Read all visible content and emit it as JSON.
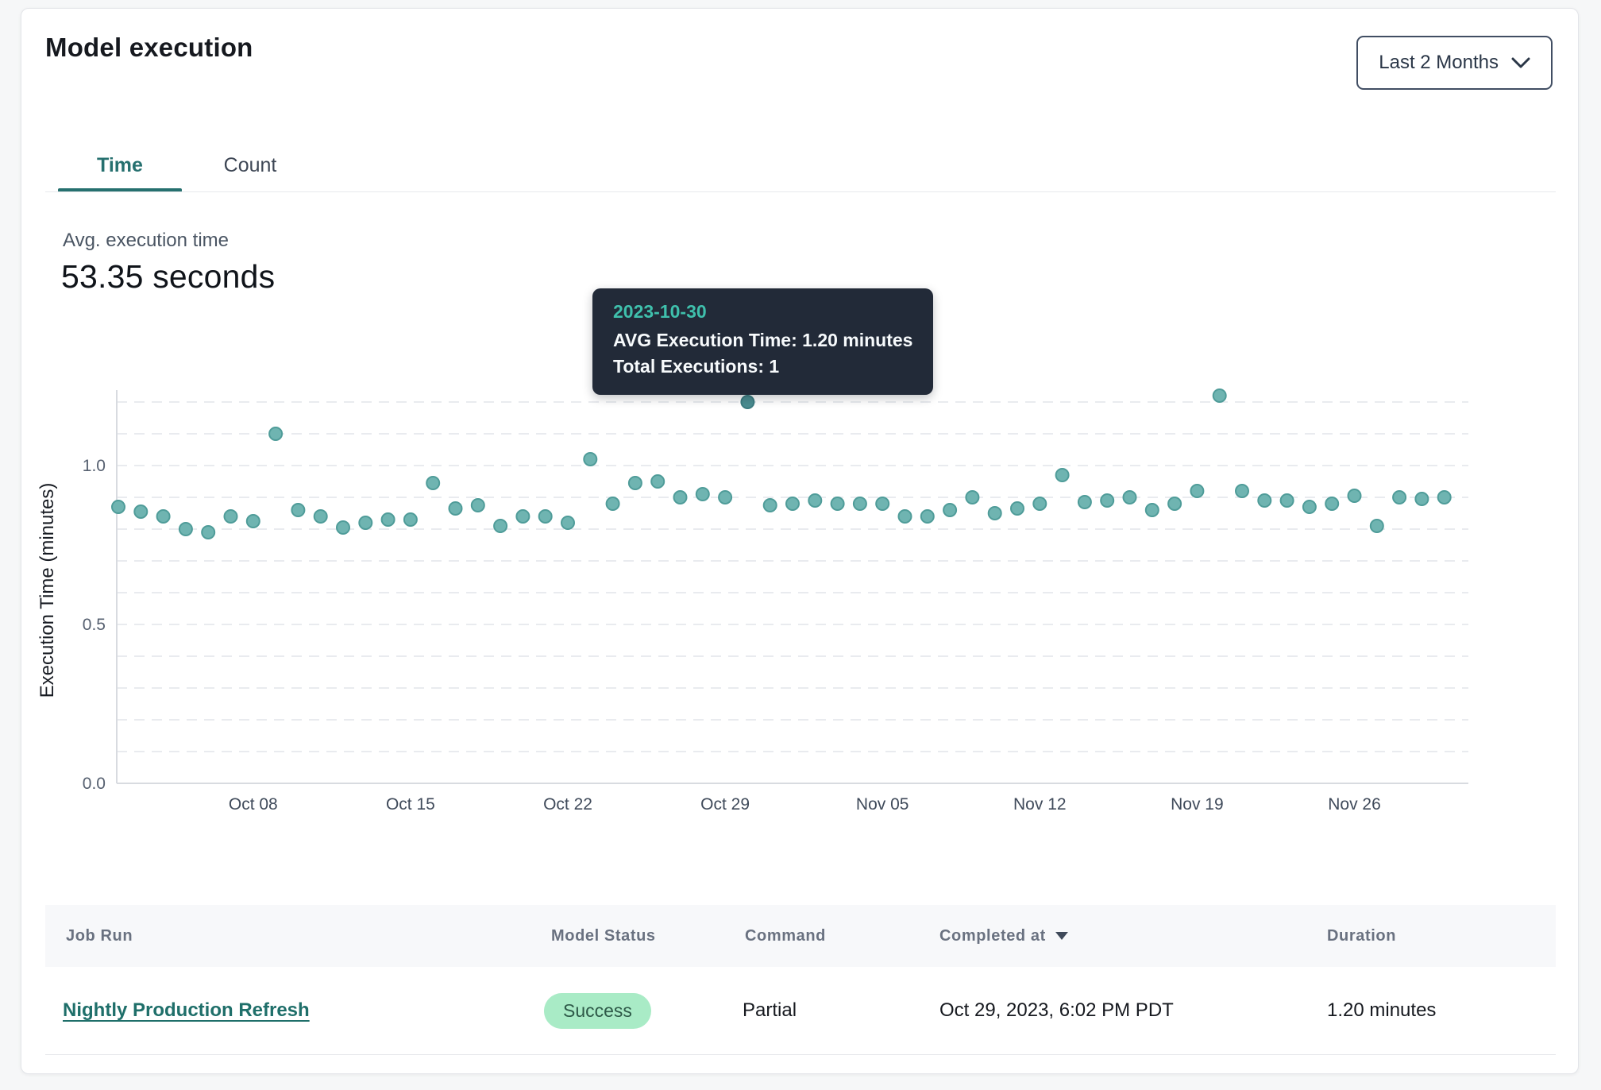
{
  "header": {
    "title": "Model execution",
    "range_selector": {
      "label": "Last 2 Months"
    }
  },
  "tabs": [
    {
      "label": "Time",
      "active": true
    },
    {
      "label": "Count",
      "active": false
    }
  ],
  "metric": {
    "label": "Avg. execution time",
    "value": "53.35 seconds"
  },
  "tooltip": {
    "date": "2023-10-30",
    "avg_line": "AVG Execution Time: 1.20 minutes",
    "total_line": "Total Executions: 1"
  },
  "chart_data": {
    "type": "scatter",
    "title": "",
    "xlabel": "",
    "ylabel": "Execution Time (minutes)",
    "ylim": [
      0,
      1.25
    ],
    "grid_step": 0.1,
    "grid": "horizontal dashed every 0.1",
    "legend": "none",
    "y_ticks": [
      {
        "label": "0.0",
        "value": 0.0
      },
      {
        "label": "0.5",
        "value": 0.5
      },
      {
        "label": "1.0",
        "value": 1.0
      }
    ],
    "x_ticks": [
      {
        "label": "Oct 08",
        "date": "2023-10-08"
      },
      {
        "label": "Oct 15",
        "date": "2023-10-15"
      },
      {
        "label": "Oct 22",
        "date": "2023-10-22"
      },
      {
        "label": "Oct 29",
        "date": "2023-10-29"
      },
      {
        "label": "Nov 05",
        "date": "2023-11-05"
      },
      {
        "label": "Nov 12",
        "date": "2023-11-12"
      },
      {
        "label": "Nov 19",
        "date": "2023-11-19"
      },
      {
        "label": "Nov 26",
        "date": "2023-11-26"
      }
    ],
    "highlight": {
      "date": "2023-10-30",
      "avg_execution_minutes": 1.2,
      "total_executions": 1
    },
    "series": [
      {
        "name": "AVG Execution Time (minutes)",
        "points": [
          {
            "date": "2023-10-02",
            "value": 0.87
          },
          {
            "date": "2023-10-03",
            "value": 0.855
          },
          {
            "date": "2023-10-04",
            "value": 0.84
          },
          {
            "date": "2023-10-05",
            "value": 0.8
          },
          {
            "date": "2023-10-06",
            "value": 0.79
          },
          {
            "date": "2023-10-07",
            "value": 0.84
          },
          {
            "date": "2023-10-08",
            "value": 0.825
          },
          {
            "date": "2023-10-09",
            "value": 1.1
          },
          {
            "date": "2023-10-10",
            "value": 0.86
          },
          {
            "date": "2023-10-11",
            "value": 0.84
          },
          {
            "date": "2023-10-12",
            "value": 0.805
          },
          {
            "date": "2023-10-13",
            "value": 0.82
          },
          {
            "date": "2023-10-14",
            "value": 0.83
          },
          {
            "date": "2023-10-15",
            "value": 0.83
          },
          {
            "date": "2023-10-16",
            "value": 0.945
          },
          {
            "date": "2023-10-17",
            "value": 0.865
          },
          {
            "date": "2023-10-18",
            "value": 0.875
          },
          {
            "date": "2023-10-19",
            "value": 0.81
          },
          {
            "date": "2023-10-20",
            "value": 0.84
          },
          {
            "date": "2023-10-21",
            "value": 0.84
          },
          {
            "date": "2023-10-22",
            "value": 0.82
          },
          {
            "date": "2023-10-23",
            "value": 1.02
          },
          {
            "date": "2023-10-24",
            "value": 0.88
          },
          {
            "date": "2023-10-25",
            "value": 0.945
          },
          {
            "date": "2023-10-26",
            "value": 0.95
          },
          {
            "date": "2023-10-27",
            "value": 0.9
          },
          {
            "date": "2023-10-28",
            "value": 0.91
          },
          {
            "date": "2023-10-29",
            "value": 0.9
          },
          {
            "date": "2023-10-30",
            "value": 1.2
          },
          {
            "date": "2023-10-31",
            "value": 0.875
          },
          {
            "date": "2023-11-01",
            "value": 0.88
          },
          {
            "date": "2023-11-02",
            "value": 0.89
          },
          {
            "date": "2023-11-03",
            "value": 0.88
          },
          {
            "date": "2023-11-04",
            "value": 0.88
          },
          {
            "date": "2023-11-05",
            "value": 0.88
          },
          {
            "date": "2023-11-06",
            "value": 0.84
          },
          {
            "date": "2023-11-07",
            "value": 0.84
          },
          {
            "date": "2023-11-08",
            "value": 0.86
          },
          {
            "date": "2023-11-09",
            "value": 0.9
          },
          {
            "date": "2023-11-10",
            "value": 0.85
          },
          {
            "date": "2023-11-11",
            "value": 0.865
          },
          {
            "date": "2023-11-12",
            "value": 0.88
          },
          {
            "date": "2023-11-13",
            "value": 0.97
          },
          {
            "date": "2023-11-14",
            "value": 0.885
          },
          {
            "date": "2023-11-15",
            "value": 0.89
          },
          {
            "date": "2023-11-16",
            "value": 0.9
          },
          {
            "date": "2023-11-17",
            "value": 0.86
          },
          {
            "date": "2023-11-18",
            "value": 0.88
          },
          {
            "date": "2023-11-19",
            "value": 0.92
          },
          {
            "date": "2023-11-20",
            "value": 1.22
          },
          {
            "date": "2023-11-21",
            "value": 0.92
          },
          {
            "date": "2023-11-22",
            "value": 0.89
          },
          {
            "date": "2023-11-23",
            "value": 0.89
          },
          {
            "date": "2023-11-24",
            "value": 0.87
          },
          {
            "date": "2023-11-25",
            "value": 0.88
          },
          {
            "date": "2023-11-26",
            "value": 0.905
          },
          {
            "date": "2023-11-27",
            "value": 0.81
          },
          {
            "date": "2023-11-28",
            "value": 0.9
          },
          {
            "date": "2023-11-29",
            "value": 0.895
          },
          {
            "date": "2023-11-30",
            "value": 0.9
          }
        ]
      }
    ]
  },
  "table": {
    "columns": [
      {
        "label": "Job Run"
      },
      {
        "label": "Model Status"
      },
      {
        "label": "Command"
      },
      {
        "label": "Completed at",
        "sorted": "desc"
      },
      {
        "label": "Duration"
      }
    ],
    "rows": [
      {
        "job_run": "Nightly Production Refresh",
        "model_status": "Success",
        "command": "Partial",
        "completed_at": "Oct 29, 2023, 6:02 PM PDT",
        "duration": "1.20 minutes"
      }
    ]
  },
  "colors": {
    "accent_teal": "#26706f",
    "point_fill": "#6fb4b1",
    "point_stroke": "#4f9c99",
    "point_highlight_fill": "#4a8c90",
    "point_highlight_stroke": "#3b7b80",
    "grid_line": "#e9ebef",
    "axis_line": "#d8dbe0",
    "tooltip_bg": "#222a38",
    "tooltip_date": "#3fc0ac",
    "badge_bg": "#a9ebc6",
    "badge_text": "#2e5948",
    "link": "#1f6f6a"
  }
}
